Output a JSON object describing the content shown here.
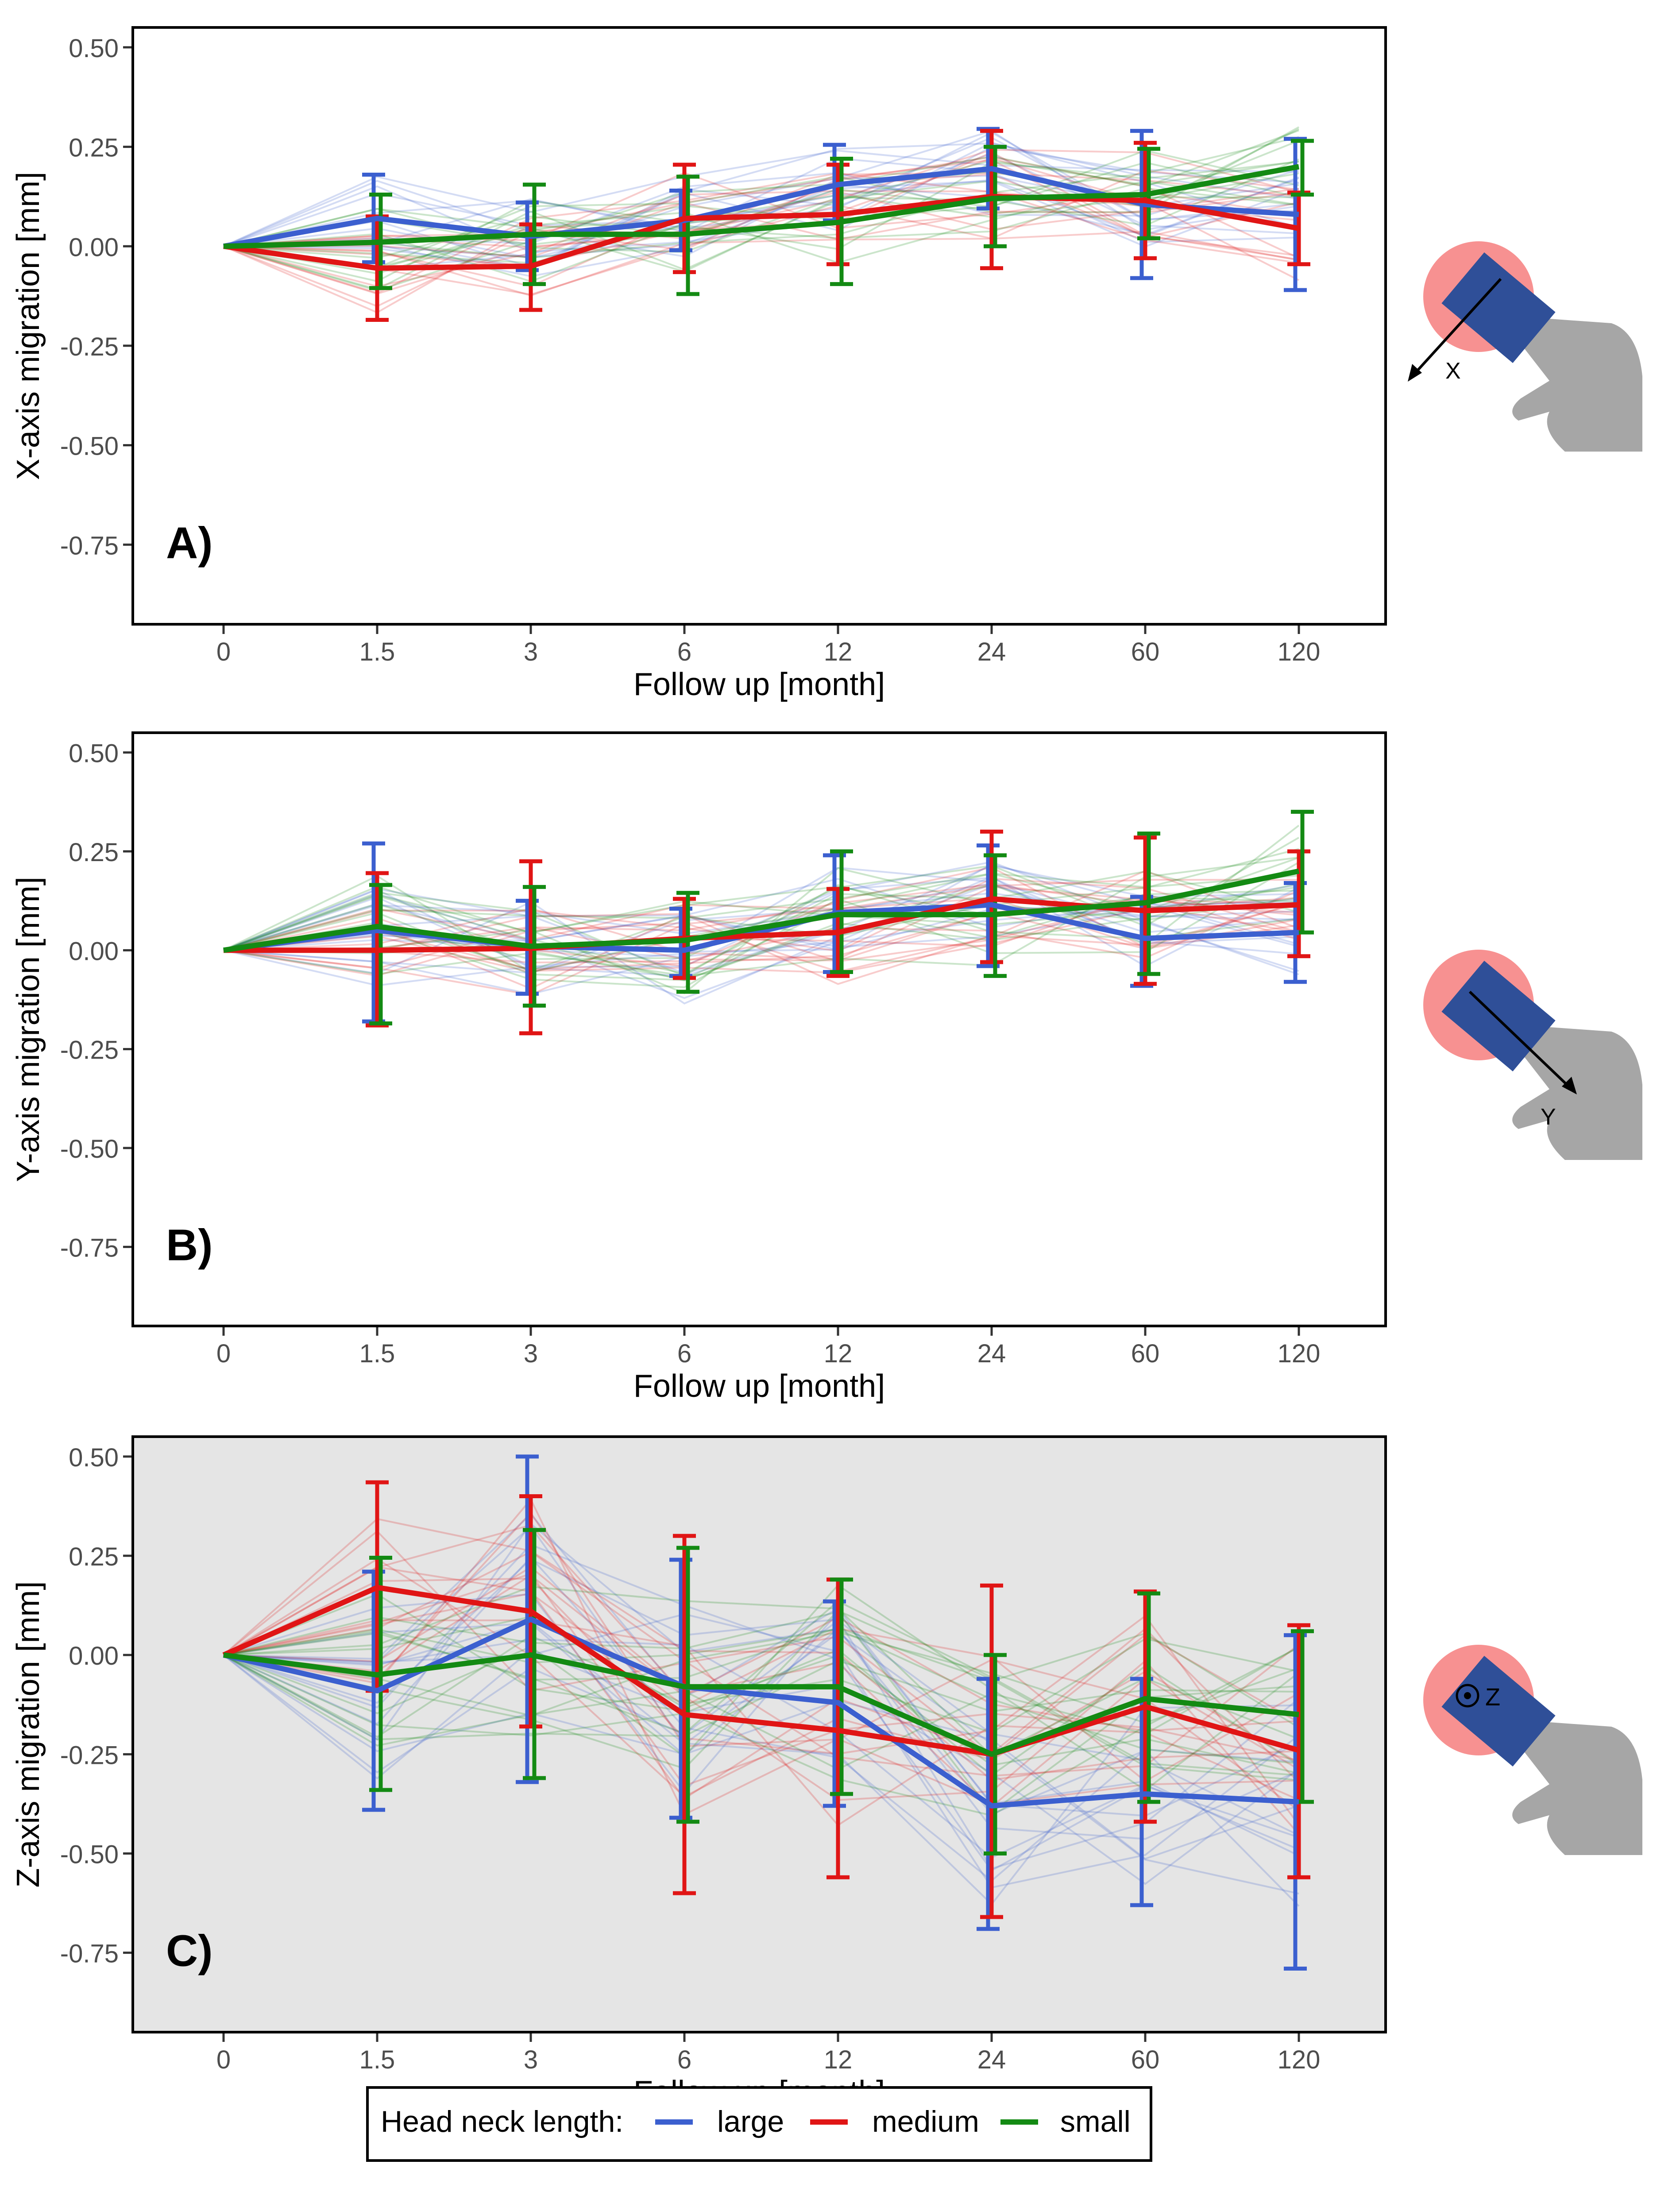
{
  "colors": {
    "large": "#3b5fcf",
    "medium": "#e01515",
    "small": "#138a13",
    "head": "#f79191",
    "stem": "#2f4f98",
    "bone": "#a6a6a6"
  },
  "chart_data": [
    {
      "type": "line",
      "panel_label": "A)",
      "ylabel": "X-axis migration [mm]",
      "xlabel": "Follow up [month]",
      "categories": [
        "0",
        "1.5",
        "3",
        "6",
        "12",
        "24",
        "60",
        "120"
      ],
      "ylim": [
        -0.95,
        0.55
      ],
      "yticks": [
        0.5,
        0.25,
        0.0,
        -0.25,
        -0.5,
        -0.75
      ],
      "ytick_labels": [
        "0.50",
        "0.25",
        "0.00",
        "-0.25",
        "-0.50",
        "-0.75"
      ],
      "background": "#ffffff",
      "axis_symbol": "X",
      "series": [
        {
          "name": "large",
          "values": [
            0,
            0.07,
            0.025,
            0.065,
            0.155,
            0.195,
            0.105,
            0.08
          ],
          "err_low": [
            0,
            -0.04,
            -0.06,
            -0.01,
            0.065,
            0.095,
            -0.08,
            -0.11
          ],
          "err_high": [
            0,
            0.18,
            0.11,
            0.14,
            0.255,
            0.295,
            0.29,
            0.27
          ]
        },
        {
          "name": "medium",
          "values": [
            0,
            -0.055,
            -0.05,
            0.07,
            0.08,
            0.125,
            0.115,
            0.045
          ],
          "err_low": [
            0,
            -0.185,
            -0.16,
            -0.065,
            -0.045,
            -0.055,
            -0.03,
            -0.045
          ],
          "err_high": [
            0,
            0.075,
            0.055,
            0.205,
            0.205,
            0.29,
            0.26,
            0.135
          ]
        },
        {
          "name": "small",
          "values": [
            0,
            0.01,
            0.03,
            0.03,
            0.06,
            0.12,
            0.13,
            0.2
          ],
          "err_low": [
            0,
            -0.105,
            -0.095,
            -0.12,
            -0.095,
            0.0,
            0.02,
            0.13
          ],
          "err_high": [
            0,
            0.13,
            0.155,
            0.175,
            0.22,
            0.25,
            0.245,
            0.265
          ]
        }
      ]
    },
    {
      "type": "line",
      "panel_label": "B)",
      "ylabel": "Y-axis migration [mm]",
      "xlabel": "Follow up [month]",
      "categories": [
        "0",
        "1.5",
        "3",
        "6",
        "12",
        "24",
        "60",
        "120"
      ],
      "ylim": [
        -0.95,
        0.55
      ],
      "yticks": [
        0.5,
        0.25,
        0.0,
        -0.25,
        -0.5,
        -0.75
      ],
      "ytick_labels": [
        "0.50",
        "0.25",
        "0.00",
        "-0.25",
        "-0.50",
        "-0.75"
      ],
      "background": "#ffffff",
      "axis_symbol": "Y",
      "series": [
        {
          "name": "large",
          "values": [
            0,
            0.05,
            0.01,
            0.0,
            0.095,
            0.115,
            0.03,
            0.045
          ],
          "err_low": [
            0,
            -0.18,
            -0.11,
            -0.065,
            -0.055,
            -0.04,
            -0.09,
            -0.08
          ],
          "err_high": [
            0,
            0.27,
            0.125,
            0.105,
            0.24,
            0.265,
            0.135,
            0.17
          ]
        },
        {
          "name": "medium",
          "values": [
            0,
            0.0,
            0.005,
            0.03,
            0.045,
            0.13,
            0.1,
            0.115
          ],
          "err_low": [
            0,
            -0.19,
            -0.21,
            -0.07,
            -0.065,
            -0.03,
            -0.085,
            -0.015
          ],
          "err_high": [
            0,
            0.195,
            0.225,
            0.13,
            0.155,
            0.3,
            0.285,
            0.25
          ]
        },
        {
          "name": "small",
          "values": [
            0,
            0.06,
            0.01,
            0.025,
            0.09,
            0.09,
            0.12,
            0.2
          ],
          "err_low": [
            0,
            -0.185,
            -0.14,
            -0.105,
            -0.055,
            -0.065,
            -0.06,
            0.045
          ],
          "err_high": [
            0,
            0.165,
            0.16,
            0.145,
            0.25,
            0.24,
            0.295,
            0.35
          ]
        }
      ]
    },
    {
      "type": "line",
      "panel_label": "C)",
      "ylabel": "Z-axis migration [mm]",
      "xlabel": "Follow up [month]",
      "categories": [
        "0",
        "1.5",
        "3",
        "6",
        "12",
        "24",
        "60",
        "120"
      ],
      "ylim": [
        -0.95,
        0.55
      ],
      "yticks": [
        0.5,
        0.25,
        0.0,
        -0.25,
        -0.5,
        -0.75
      ],
      "ytick_labels": [
        "0.50",
        "0.25",
        "0.00",
        "-0.25",
        "-0.50",
        "-0.75"
      ],
      "background": "#e5e5e5",
      "axis_symbol": "Z",
      "series": [
        {
          "name": "large",
          "values": [
            0,
            -0.09,
            0.09,
            -0.08,
            -0.12,
            -0.38,
            -0.35,
            -0.37
          ],
          "err_low": [
            0,
            -0.39,
            -0.32,
            -0.41,
            -0.38,
            -0.69,
            -0.63,
            -0.79
          ],
          "err_high": [
            0,
            0.21,
            0.5,
            0.24,
            0.135,
            -0.06,
            -0.06,
            0.05
          ]
        },
        {
          "name": "medium",
          "values": [
            0,
            0.17,
            0.11,
            -0.15,
            -0.19,
            -0.25,
            -0.13,
            -0.24
          ],
          "err_low": [
            0,
            -0.09,
            -0.18,
            -0.6,
            -0.56,
            -0.66,
            -0.42,
            -0.56
          ],
          "err_high": [
            0,
            0.435,
            0.4,
            0.3,
            0.19,
            0.175,
            0.16,
            0.075
          ]
        },
        {
          "name": "small",
          "values": [
            0,
            -0.05,
            0.0,
            -0.08,
            -0.08,
            -0.25,
            -0.11,
            -0.15
          ],
          "err_low": [
            0,
            -0.34,
            -0.31,
            -0.42,
            -0.35,
            -0.5,
            -0.37,
            -0.37
          ],
          "err_high": [
            0,
            0.245,
            0.315,
            0.27,
            0.19,
            0.0,
            0.155,
            0.06
          ]
        }
      ]
    }
  ],
  "legend": {
    "title": "Head neck length:",
    "items": [
      "large",
      "medium",
      "small"
    ]
  }
}
